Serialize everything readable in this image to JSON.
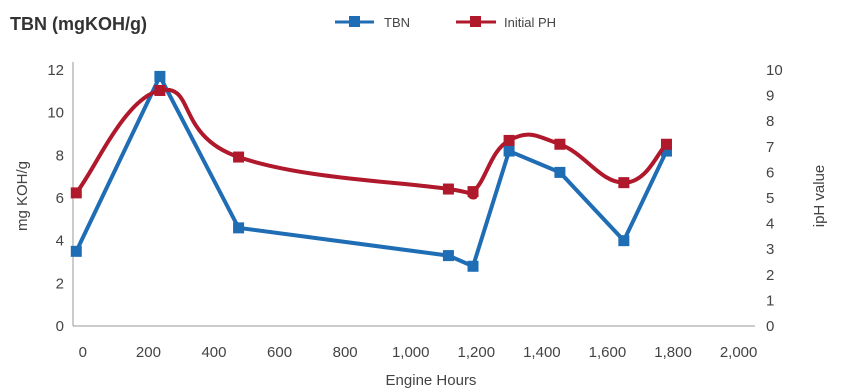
{
  "chart_data": {
    "type": "line",
    "title": "TBN (mgKOH/g)",
    "xlabel": "Engine Hours",
    "ylabel": "mg KOH/g",
    "y2label": "ipH value",
    "xlim": [
      -30,
      2050
    ],
    "ylim": [
      0,
      12
    ],
    "y2lim": [
      0,
      10
    ],
    "x_ticks": [
      0,
      200,
      400,
      600,
      800,
      1000,
      1200,
      1400,
      1600,
      1800,
      2000
    ],
    "x_tick_labels": [
      "0",
      "200",
      "400",
      "600",
      "800",
      "1,000",
      "1,200",
      "1,400",
      "1,600",
      "1,800",
      "2,000"
    ],
    "y_ticks": [
      0,
      2,
      4,
      6,
      8,
      10,
      12
    ],
    "y_tick_labels": [
      "0",
      "2",
      "4",
      "6",
      "8",
      "10",
      "12"
    ],
    "y2_ticks": [
      0,
      1,
      2,
      3,
      4,
      5,
      6,
      7,
      8,
      9,
      10
    ],
    "y2_tick_labels": [
      "0",
      "1",
      "2",
      "3",
      "4",
      "5",
      "6",
      "7",
      "8",
      "9",
      "10"
    ],
    "grid": false,
    "legend_position": "top-center",
    "series": [
      {
        "name": "TBN",
        "axis": "left",
        "color": "#1f6db4",
        "smooth": false,
        "x": [
          -20,
          235,
          475,
          1115,
          1190,
          1300,
          1455,
          1650,
          1780
        ],
        "y": [
          3.5,
          11.7,
          4.6,
          3.3,
          2.8,
          8.2,
          7.2,
          4.0,
          8.2
        ]
      },
      {
        "name": "Initial PH",
        "axis": "right",
        "color": "#b0182b",
        "smooth": true,
        "x": [
          -20,
          235,
          475,
          1115,
          1190,
          1300,
          1455,
          1650,
          1780
        ],
        "y": [
          5.2,
          9.2,
          6.6,
          5.35,
          5.25,
          7.25,
          7.1,
          5.6,
          7.1
        ]
      }
    ]
  }
}
